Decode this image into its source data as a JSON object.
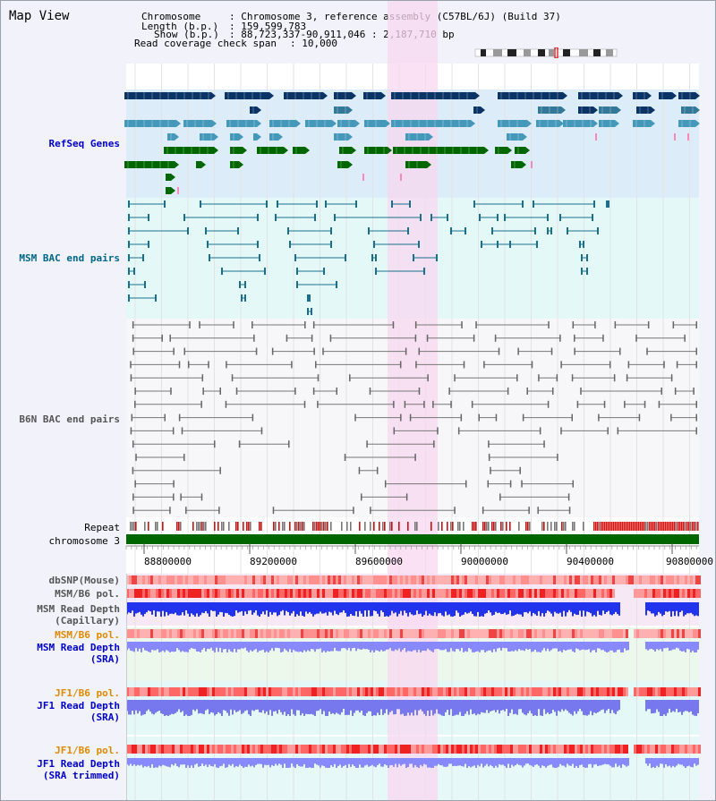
{
  "app_title": "Map View",
  "header": {
    "chromosome_key": "Chromosome",
    "chromosome_val": ": Chromosome 3, reference assembly (C57BL/6J) (Build 37)",
    "length_key": "Length (b.p.)",
    "length_val": ": 159,599,783",
    "show_key": "Show (b.p.)",
    "show_val": ": 88,723,337-90,911,046 : 2,187,710 bp",
    "coverage_key": "Read coverage check span",
    "coverage_val": ": 10,000"
  },
  "tracks": {
    "refseq": "RefSeq Genes",
    "msm_bac": "MSM BAC end pairs",
    "b6n_bac": "B6N BAC end pairs",
    "repeat": "Repeat",
    "chromosome": "chromosome 3",
    "dbsnp": "dbSNP(Mouse)",
    "msm_b6_pol_1": "MSM/B6 pol.",
    "msm_depth_cap_1": "MSM Read Depth",
    "msm_depth_cap_2": "(Capillary)",
    "msm_b6_pol_2": "MSM/B6 pol.",
    "msm_depth_sra_1": "MSM Read Depth",
    "msm_depth_sra_2": "(SRA)",
    "jf1_b6_pol_1": "JF1/B6 pol.",
    "jf1_depth_sra_1": "JF1 Read Depth",
    "jf1_depth_sra_2": "(SRA)",
    "jf1_b6_pol_2": "JF1/B6 pol.",
    "jf1_depth_trim_1": "JF1 Read Depth",
    "jf1_depth_trim_2": "(SRA trimmed)"
  },
  "scale_ticks": [
    "88800000",
    "89200000",
    "89600000",
    "90000000",
    "90400000",
    "90800000"
  ],
  "colors": {
    "refseq_label": "#0000cc",
    "msm_label": "#006688",
    "gray_label": "#555555",
    "orange_label": "#e08a00",
    "blue_label": "#0000cc",
    "highlight": "#f8d8f0",
    "refseq_bg": "#dcecf8",
    "msm_bg": "#e4f8f8",
    "chromosome": "#006600"
  }
}
